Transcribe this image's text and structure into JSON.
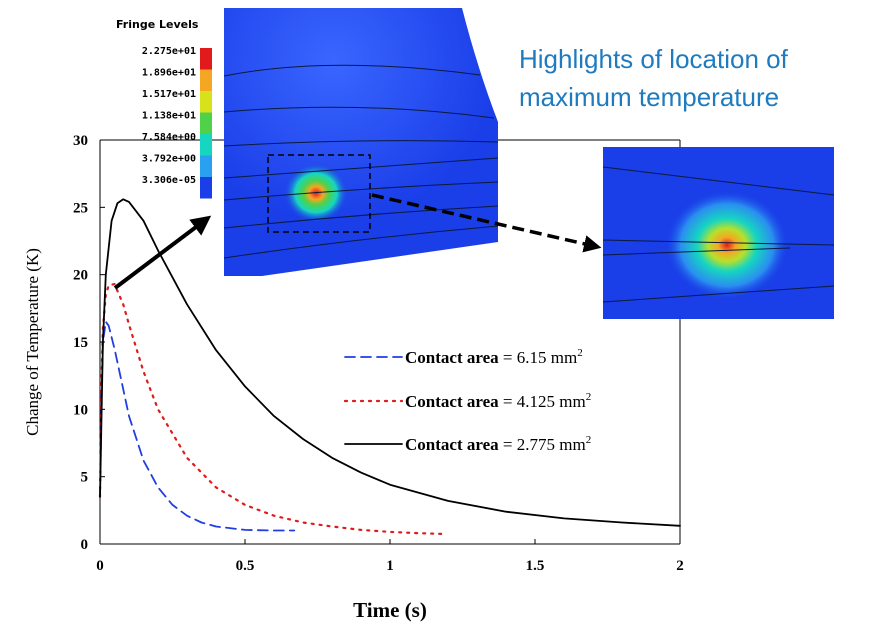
{
  "chart_data": {
    "type": "line",
    "xlabel": "Time (s)",
    "ylabel": "Change of Temperature (K)",
    "xlim": [
      0,
      2
    ],
    "ylim": [
      0,
      30
    ],
    "xticks": [
      "0",
      "0.5",
      "1",
      "1.5",
      "2"
    ],
    "yticks": [
      "0",
      "5",
      "10",
      "15",
      "20",
      "25",
      "30"
    ],
    "grid": false,
    "legend_position": "right",
    "series": [
      {
        "name": "Contact area = 6.15 mm²",
        "legend_bold": "Contact area",
        "legend_rest": " = 6.15 mm",
        "legend_sup": "2",
        "color": "#1f3fe0",
        "dash": "dashed",
        "x": [
          0,
          0.005,
          0.01,
          0.02,
          0.03,
          0.05,
          0.08,
          0.1,
          0.15,
          0.2,
          0.25,
          0.3,
          0.35,
          0.4,
          0.5,
          0.6,
          0.67
        ],
        "y": [
          3.5,
          11,
          15,
          16.5,
          16.2,
          14.5,
          11.5,
          9.5,
          6.2,
          4.2,
          2.9,
          2.1,
          1.6,
          1.3,
          1.05,
          1.0,
          1.0
        ]
      },
      {
        "name": "Contact area = 4.125 mm²",
        "legend_bold": "Contact area",
        "legend_rest": " = 4.125 mm",
        "legend_sup": "2",
        "color": "#e01b1b",
        "dash": "dotted",
        "x": [
          0,
          0.005,
          0.01,
          0.02,
          0.03,
          0.05,
          0.08,
          0.1,
          0.15,
          0.2,
          0.3,
          0.4,
          0.5,
          0.6,
          0.7,
          0.8,
          0.9,
          1.0,
          1.1,
          1.18
        ],
        "y": [
          3.5,
          12,
          16,
          18.5,
          19.2,
          19.3,
          17.8,
          16.3,
          12.8,
          10,
          6.4,
          4.2,
          2.9,
          2.1,
          1.6,
          1.3,
          1.05,
          0.9,
          0.8,
          0.75
        ]
      },
      {
        "name": "Contact area = 2.775 mm²",
        "legend_bold": "Contact area",
        "legend_rest": " = 2.775 mm",
        "legend_sup": "2",
        "color": "#000000",
        "dash": "solid",
        "x": [
          0,
          0.01,
          0.02,
          0.04,
          0.06,
          0.08,
          0.1,
          0.15,
          0.2,
          0.3,
          0.4,
          0.5,
          0.6,
          0.7,
          0.8,
          0.9,
          1.0,
          1.2,
          1.4,
          1.6,
          1.8,
          2.0
        ],
        "y": [
          3.5,
          15,
          20,
          24,
          25.3,
          25.6,
          25.4,
          24,
          21.8,
          17.8,
          14.4,
          11.7,
          9.5,
          7.8,
          6.4,
          5.3,
          4.4,
          3.2,
          2.4,
          1.9,
          1.6,
          1.35
        ]
      }
    ]
  },
  "fringe": {
    "title": "Fringe Levels",
    "levels": [
      "2.275e+01",
      "1.896e+01",
      "1.517e+01",
      "1.138e+01",
      "7.584e+00",
      "3.792e+00",
      "3.306e-05"
    ],
    "colors": [
      "#e31a1c",
      "#f5a623",
      "#d8e21a",
      "#4fd14a",
      "#16d6c0",
      "#2aa0f0",
      "#1a3ee8"
    ]
  },
  "annotation": {
    "line1": "Highlights of location of",
    "line2": "maximum temperature",
    "color": "#1f7bbf"
  }
}
